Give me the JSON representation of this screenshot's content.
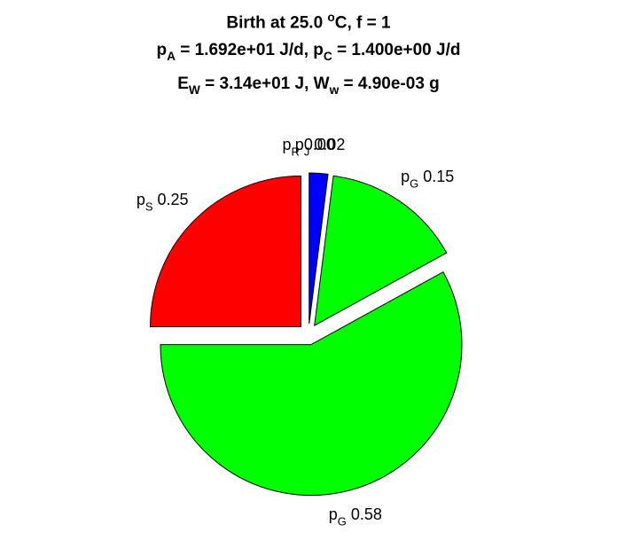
{
  "title": {
    "line1": {
      "pre": "Birth at 25.0 ",
      "sup": "o",
      "post": "C, f = 1"
    },
    "line2": {
      "a": "p",
      "a_sub": "A",
      "b": " = 1.692e+01 J/d, p",
      "b_sub": "C",
      "c": " = 1.400e+00 J/d"
    },
    "line3": {
      "a": "E",
      "a_sub": "W",
      "b": " = 3.14e+01 J, W",
      "b_sub": "w",
      "c": " = 4.90e-03 g"
    }
  },
  "chart_data": {
    "type": "pie",
    "start": "top",
    "direction": "clockwise",
    "slices": [
      {
        "sym": "p",
        "sub": "J",
        "value": 0.02,
        "value_label": "0.02",
        "color": "#0000ff"
      },
      {
        "sym": "p",
        "sub": "G",
        "value": 0.15,
        "value_label": "0.15",
        "color": "#00ff00"
      },
      {
        "sym": "p",
        "sub": "G",
        "value": 0.58,
        "value_label": "0.58",
        "color": "#00ff00"
      },
      {
        "sym": "p",
        "sub": "S",
        "value": 0.25,
        "value_label": "0.25",
        "color": "#ff0000"
      },
      {
        "sym": "p",
        "sub": "R",
        "value": 0.0,
        "value_label": "0.00",
        "color": "#ffff00"
      }
    ]
  }
}
